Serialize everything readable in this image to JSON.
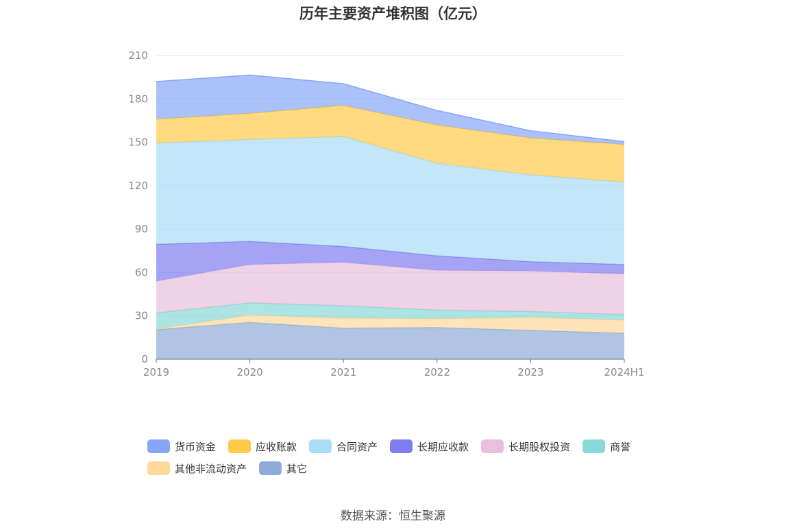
{
  "chart_data": {
    "type": "area",
    "stacked": true,
    "title": "历年主要资产堆积图（亿元）",
    "x": [
      "2019",
      "2020",
      "2021",
      "2022",
      "2023",
      "2024H1"
    ],
    "ylim": [
      0,
      210
    ],
    "yticks": [
      0,
      30,
      60,
      90,
      120,
      150,
      180,
      210
    ],
    "grid": true,
    "legend_position": "bottom",
    "series": [
      {
        "name": "其它",
        "color": "#8eabd9",
        "values": [
          20.5,
          25.5,
          21.5,
          22,
          20,
          18
        ]
      },
      {
        "name": "其他非流动资产",
        "color": "#fdd99a",
        "values": [
          0.5,
          5,
          7,
          6,
          9,
          9
        ]
      },
      {
        "name": "商誉",
        "color": "#8ad8d8",
        "values": [
          11,
          8.5,
          8.5,
          6,
          4,
          4
        ]
      },
      {
        "name": "长期股权投资",
        "color": "#eabfdd",
        "values": [
          22,
          26.5,
          30,
          27.5,
          28,
          28
        ]
      },
      {
        "name": "长期应收款",
        "color": "#7f7df0",
        "values": [
          25.5,
          16,
          11,
          10,
          6.5,
          6.5
        ]
      },
      {
        "name": "合同资产",
        "color": "#a9dcf6",
        "values": [
          70,
          70.5,
          76,
          64,
          60,
          57
        ]
      },
      {
        "name": "应收账款",
        "color": "#ffca4a",
        "values": [
          16.5,
          18,
          21.5,
          26.5,
          25.5,
          26
        ]
      },
      {
        "name": "货币资金",
        "color": "#88a6f8",
        "values": [
          26,
          26.5,
          15,
          10,
          5,
          2
        ]
      }
    ],
    "legend_order": [
      "货币资金",
      "应收账款",
      "合同资产",
      "长期应收款",
      "长期股权投资",
      "商誉",
      "其他非流动资产",
      "其它"
    ]
  },
  "source": "数据来源：恒生聚源"
}
